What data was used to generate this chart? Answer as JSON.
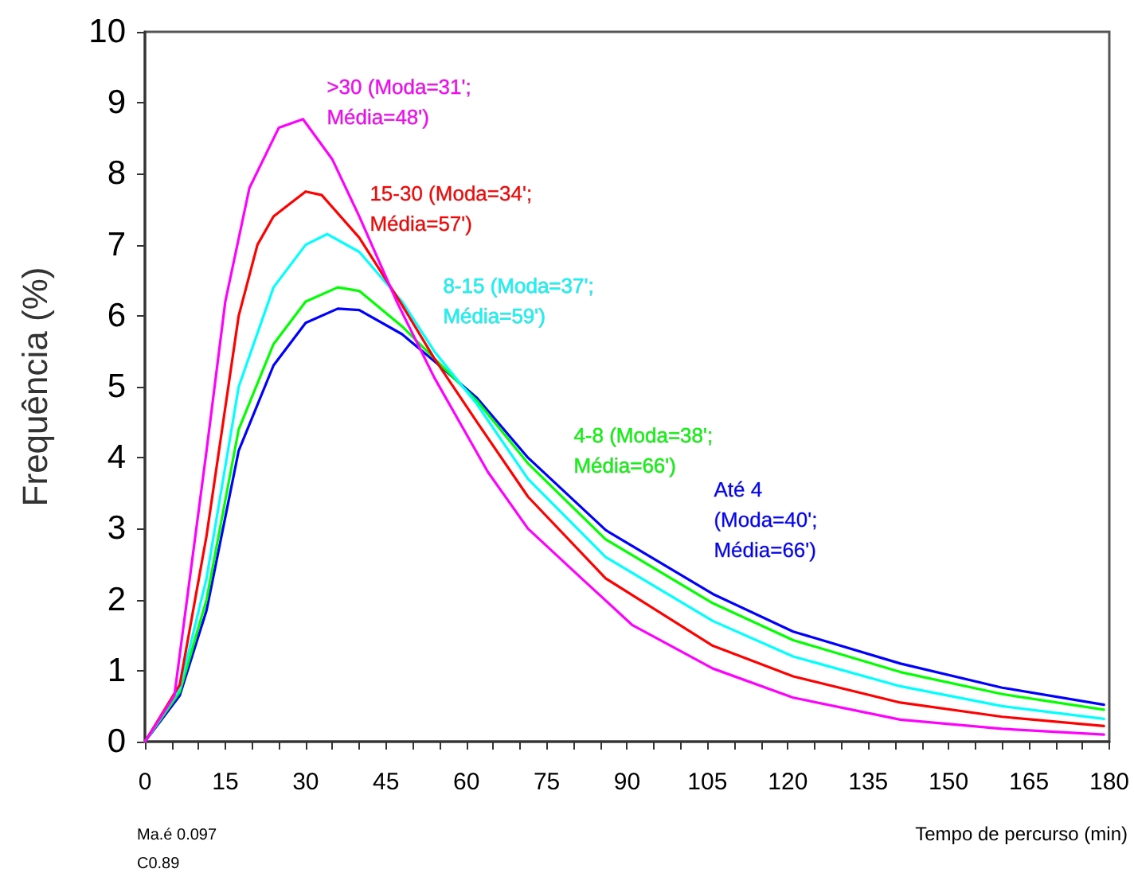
{
  "chart_data": {
    "type": "line",
    "ylabel": "Frequência (%)",
    "xlabel": "Tempo de percurso (min)",
    "xlim": [
      0,
      180
    ],
    "ylim": [
      0,
      10
    ],
    "xticks": [
      0,
      {
        "value": 5,
        "label": null
      },
      {
        "value": 10,
        "label": null
      },
      15,
      {
        "value": 20,
        "label": null
      },
      {
        "value": 25,
        "label": null
      },
      30,
      {
        "value": 35,
        "label": null
      },
      {
        "value": 40,
        "label": null
      },
      45,
      {
        "value": 50,
        "label": null
      },
      {
        "value": 55,
        "label": null
      },
      60,
      {
        "value": 65,
        "label": null
      },
      {
        "value": 70,
        "label": null
      },
      75,
      {
        "value": 80,
        "label": null
      },
      {
        "value": 85,
        "label": null
      },
      90,
      {
        "value": 95,
        "label": null
      },
      {
        "value": 100,
        "label": null
      },
      105,
      {
        "value": 110,
        "label": null
      },
      {
        "value": 115,
        "label": null
      },
      120,
      {
        "value": 125,
        "label": null
      },
      {
        "value": 130,
        "label": null
      },
      135,
      {
        "value": 140,
        "label": null
      },
      {
        "value": 145,
        "label": null
      },
      150,
      {
        "value": 155,
        "label": null
      },
      {
        "value": 160,
        "label": null
      },
      165,
      {
        "value": 170,
        "label": null
      },
      {
        "value": 175,
        "label": null
      },
      180
    ],
    "yticks": [
      0,
      1,
      2,
      3,
      4,
      5,
      6,
      7,
      8,
      9,
      10
    ],
    "grid": false,
    "legend": false,
    "marker": "none",
    "line_style": "solid",
    "annotations": [
      "Ma.é 0.097",
      "C0.89"
    ],
    "series": [
      {
        "name": "Até 4 (Moda=40'; Média=66')",
        "color": "#0000ff",
        "x": [
          0,
          6.5,
          11.5,
          17.5,
          24,
          30,
          36,
          40,
          48,
          54,
          62,
          71.5,
          86,
          106,
          121,
          141,
          160,
          179
        ],
        "values": [
          0,
          0.65,
          1.85,
          4.1,
          5.3,
          5.9,
          6.1,
          6.08,
          5.74,
          5.36,
          4.84,
          4.0,
          2.98,
          2.08,
          1.55,
          1.1,
          0.76,
          0.52
        ]
      },
      {
        "name": "4-8 (Moda=38'; Média=66')",
        "color": "#00ff00",
        "x": [
          0,
          6.5,
          11.5,
          17.5,
          24,
          30,
          36,
          40,
          48,
          54,
          62,
          71.5,
          86,
          106,
          121,
          141,
          160,
          179
        ],
        "values": [
          0,
          0.7,
          2.0,
          4.4,
          5.6,
          6.2,
          6.4,
          6.35,
          5.85,
          5.4,
          4.8,
          3.92,
          2.85,
          1.95,
          1.43,
          0.98,
          0.67,
          0.45
        ]
      },
      {
        "name": "8-15 (Moda=37'; Média=59')",
        "color": "#00ffff",
        "x": [
          0,
          6.5,
          11.5,
          17.5,
          24,
          30,
          34,
          40,
          48,
          54,
          62,
          71.5,
          86,
          106,
          121,
          141,
          160,
          179
        ],
        "values": [
          0,
          0.75,
          2.3,
          5.0,
          6.4,
          7.0,
          7.15,
          6.9,
          6.2,
          5.5,
          4.75,
          3.7,
          2.6,
          1.7,
          1.2,
          0.78,
          0.5,
          0.32
        ]
      },
      {
        "name": "15-30 (Moda=34'; Média=57')",
        "color": "#ff0000",
        "x": [
          0,
          6.5,
          11.5,
          17.5,
          21,
          24,
          30,
          33,
          40,
          48,
          54,
          62,
          71.5,
          86,
          106,
          121,
          141,
          160,
          179
        ],
        "values": [
          0,
          0.8,
          2.9,
          6.0,
          7.0,
          7.4,
          7.75,
          7.7,
          7.1,
          6.15,
          5.4,
          4.5,
          3.45,
          2.3,
          1.35,
          0.92,
          0.55,
          0.35,
          0.22
        ]
      },
      {
        "name": ">30 (Moda=31'; Média=48')",
        "color": "#ff00ff",
        "x": [
          0,
          5.5,
          11.5,
          15,
          19.5,
          25,
          29.5,
          35,
          40,
          47,
          54,
          64,
          71.5,
          81.5,
          91,
          106,
          121,
          141,
          160,
          179
        ],
        "values": [
          0,
          0.65,
          4.1,
          6.2,
          7.8,
          8.65,
          8.77,
          8.2,
          7.4,
          6.2,
          5.13,
          3.8,
          3.0,
          2.3,
          1.64,
          1.03,
          0.62,
          0.31,
          0.18,
          0.1
        ]
      }
    ]
  }
}
